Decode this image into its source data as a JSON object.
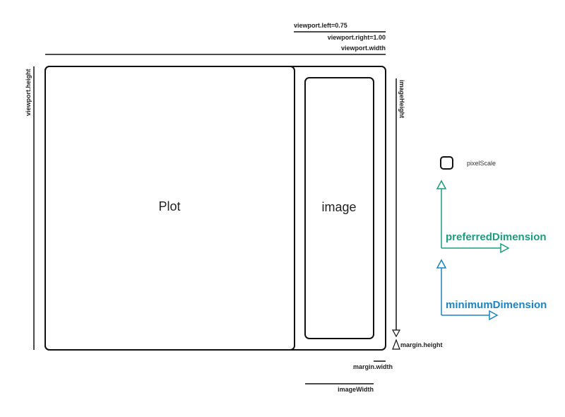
{
  "labels": {
    "viewport_left": "viewport.left=0.75",
    "viewport_right": "viewport.right=1.00",
    "viewport_width": "viewport.width",
    "viewport_height": "viewport.height",
    "image_height": "imageHeight",
    "margin_height": "margin.height",
    "margin_width": "margin.width",
    "image_width": "imageWidth",
    "plot": "Plot",
    "image": "image",
    "pixel_scale": "pixelScale",
    "preferred_dimension": "preferredDimension",
    "minimum_dimension": "minimumDimension"
  },
  "colors": {
    "preferred": "#1a9e7e",
    "minimum": "#1a85c4",
    "stroke": "#111111"
  }
}
